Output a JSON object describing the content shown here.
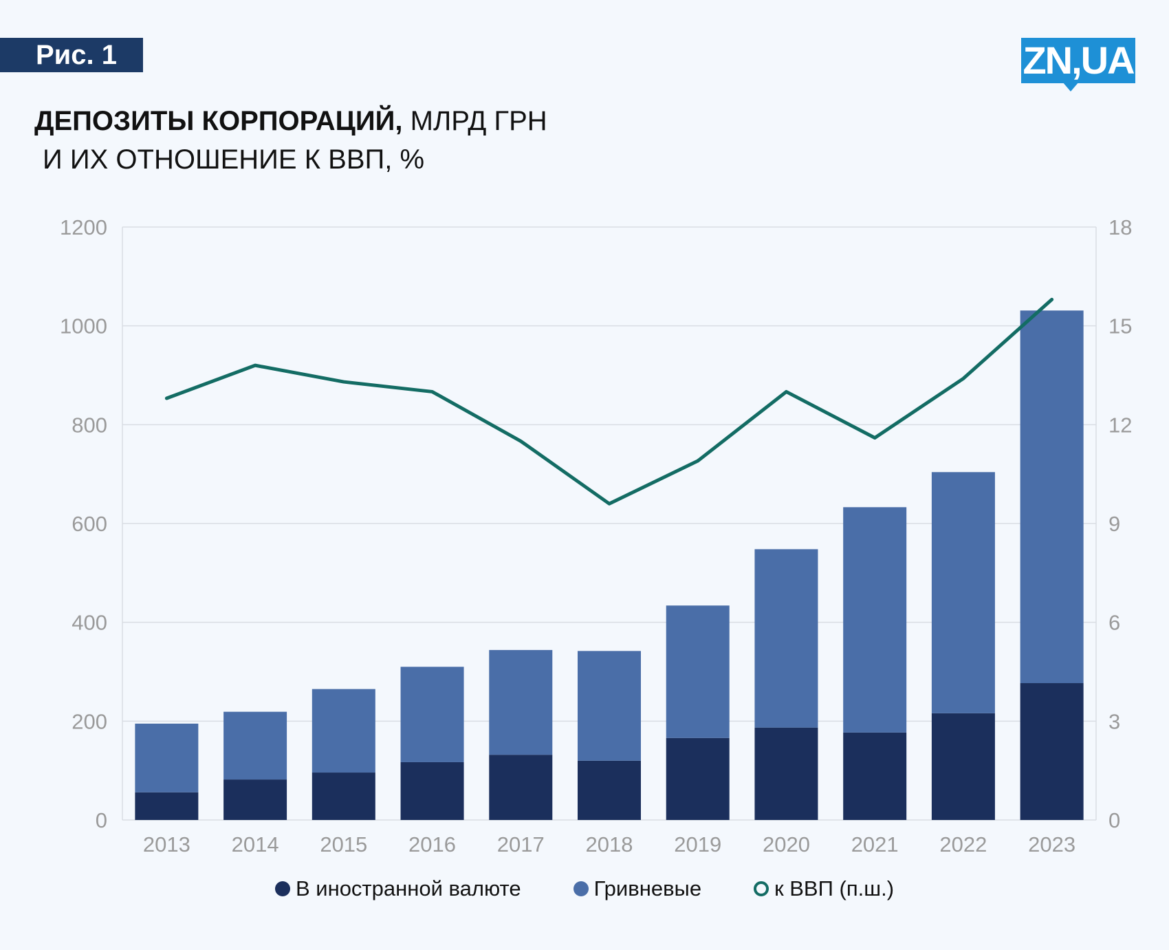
{
  "badge": "Рис. 1",
  "logo": "ZN,UA",
  "title": {
    "bold": "ДЕПОЗИТЫ КОРПОРАЦИЙ,",
    "rest": " МЛРД ГРН",
    "line2": "И ИХ ОТНОШЕНИЕ К ВВП, %"
  },
  "colors": {
    "foreign": "#1b2f5c",
    "hryvnia": "#4a6ea8",
    "line": "#136c64",
    "grid": "#d9dde3"
  },
  "chart_data": {
    "type": "bar",
    "stacked": true,
    "categories": [
      "2013",
      "2014",
      "2015",
      "2016",
      "2017",
      "2018",
      "2019",
      "2020",
      "2021",
      "2022",
      "2023"
    ],
    "series": [
      {
        "name": "В иностранной валюте",
        "type": "bar",
        "axis": "left",
        "values": [
          56,
          82,
          96,
          117,
          132,
          120,
          166,
          187,
          177,
          216,
          277
        ]
      },
      {
        "name": "Гривневые",
        "type": "bar",
        "axis": "left",
        "values": [
          139,
          137,
          169,
          193,
          212,
          222,
          268,
          361,
          456,
          488,
          754
        ]
      },
      {
        "name": "к ВВП (п.ш.)",
        "type": "line",
        "axis": "right",
        "values": [
          12.8,
          13.8,
          13.3,
          13.0,
          11.5,
          9.6,
          10.9,
          13.0,
          11.6,
          13.4,
          15.8
        ]
      }
    ],
    "ylim_left": [
      0,
      1200
    ],
    "yticks_left": [
      "0",
      "200",
      "400",
      "600",
      "800",
      "1000",
      "1200"
    ],
    "ylim_right": [
      0,
      18
    ],
    "yticks_right": [
      "0",
      "3",
      "6",
      "9",
      "12",
      "15",
      "18"
    ],
    "grid": true,
    "legend": "bottom"
  }
}
